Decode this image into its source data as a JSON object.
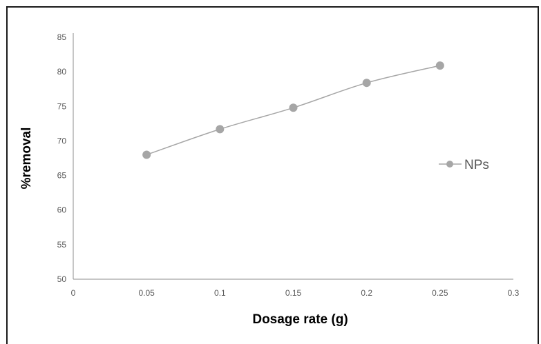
{
  "chart_data": {
    "type": "line",
    "title": "",
    "xlabel": "Dosage rate (g)",
    "ylabel": "%removal",
    "xlim": [
      0,
      0.3
    ],
    "ylim": [
      50,
      85
    ],
    "x_ticks": [
      "0",
      "0.05",
      "0.1",
      "0.15",
      "0.2",
      "0.25",
      "0.3"
    ],
    "y_ticks": [
      "50",
      "55",
      "60",
      "65",
      "70",
      "75",
      "80",
      "85"
    ],
    "grid": false,
    "legend_position": "right",
    "series": [
      {
        "name": "NPs",
        "color": "#a6a6a6",
        "x": [
          0.05,
          0.1,
          0.15,
          0.2,
          0.25
        ],
        "y": [
          68.0,
          71.7,
          74.8,
          78.4,
          80.9
        ]
      }
    ]
  }
}
